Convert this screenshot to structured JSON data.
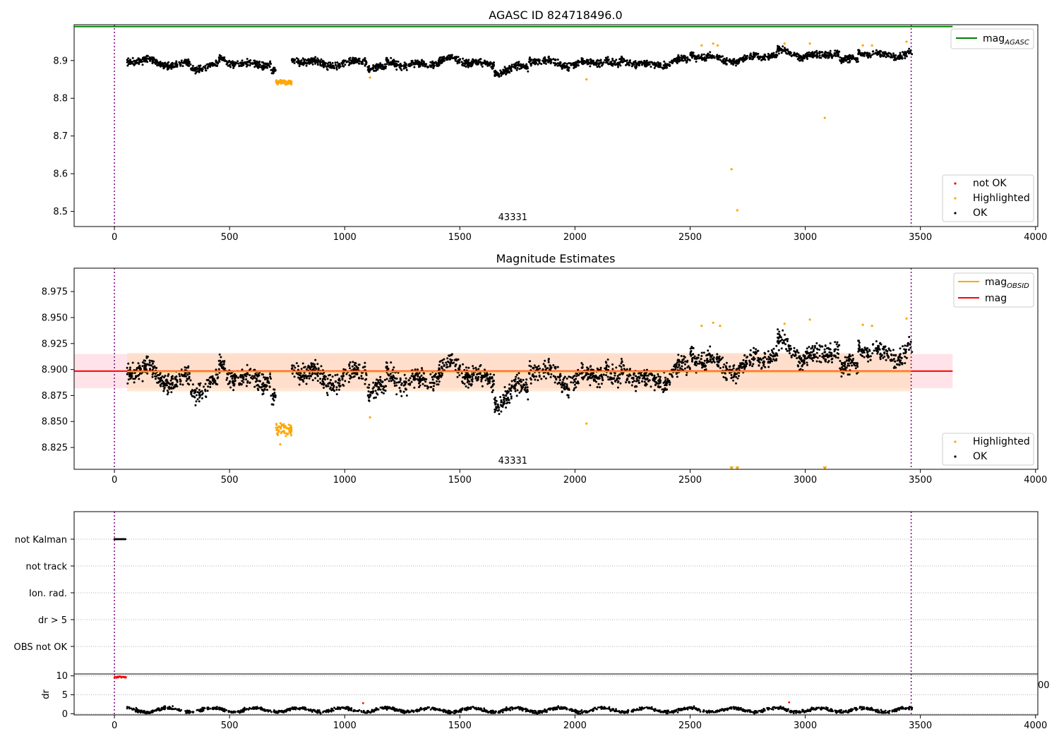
{
  "colors": {
    "ok": "#000000",
    "highlighted": "#ffa500",
    "not_ok": "#ff0000",
    "agasc_line": "#008000",
    "mag_line": "#ff0000",
    "obsid_line": "#ffa500",
    "obs_boundary": "#800080",
    "band_mag": "#ffc0cb",
    "band_obsid": "#ffdab9"
  },
  "chart_data": [
    {
      "id": "top",
      "type": "scatter",
      "title": "AGASC ID 824718496.0",
      "xlim": [
        -175,
        4010
      ],
      "ylim": [
        8.46,
        8.995
      ],
      "xticks": [
        "0",
        "500",
        "1000",
        "1500",
        "2000",
        "2500",
        "3000",
        "3500",
        "4000"
      ],
      "yticks": [
        "8.5",
        "8.6",
        "8.7",
        "8.8",
        "8.9"
      ],
      "obsid_label": "43331",
      "obsid_label_x": 1730,
      "obs_boundaries": [
        0,
        3460
      ],
      "agasc_mag": 8.99,
      "line_legend": [
        "mag_AGASC"
      ],
      "point_legend": [
        "not OK",
        "Highlighted",
        "OK"
      ],
      "highlighted_points": [
        [
          2550,
          8.94
        ],
        [
          2600,
          8.945
        ],
        [
          2620,
          8.94
        ],
        [
          2910,
          8.945
        ],
        [
          3020,
          8.945
        ],
        [
          3250,
          8.94
        ],
        [
          3290,
          8.94
        ],
        [
          3440,
          8.95
        ],
        [
          2050,
          8.85
        ],
        [
          1110,
          8.855
        ],
        [
          2680,
          8.612
        ],
        [
          2705,
          8.503
        ],
        [
          3085,
          8.748
        ]
      ]
    },
    {
      "id": "middle",
      "type": "scatter",
      "title": "Magnitude Estimates",
      "xlim": [
        -175,
        4010
      ],
      "ylim": [
        8.804,
        8.9975
      ],
      "xticks": [
        "0",
        "500",
        "1000",
        "1500",
        "2000",
        "2500",
        "3000",
        "3500",
        "4000"
      ],
      "yticks": [
        "8.825",
        "8.850",
        "8.875",
        "8.900",
        "8.925",
        "8.950",
        "8.975"
      ],
      "obsid_label": "43331",
      "obsid_label_x": 1730,
      "obs_boundaries": [
        0,
        3460
      ],
      "mag": 8.8985,
      "mag_band": [
        8.882,
        8.915
      ],
      "mag_obsid": 8.898,
      "obsid_band": [
        8.879,
        8.916
      ],
      "line_legend": [
        "mag_OBSID",
        "mag"
      ],
      "point_legend": [
        "Highlighted",
        "OK"
      ],
      "highlighted_points": [
        [
          2550,
          8.942
        ],
        [
          2600,
          8.945
        ],
        [
          2630,
          8.942
        ],
        [
          2910,
          8.944
        ],
        [
          3020,
          8.948
        ],
        [
          3250,
          8.943
        ],
        [
          3290,
          8.942
        ],
        [
          3440,
          8.949
        ],
        [
          2050,
          8.848
        ],
        [
          1110,
          8.854
        ],
        [
          720,
          8.828
        ]
      ],
      "offscale_markers": [
        2680,
        2705,
        3085
      ]
    },
    {
      "id": "flags",
      "type": "scatter",
      "categories": [
        "not Kalman",
        "not track",
        "Ion. rad.",
        "dr > 5",
        "OBS not OK"
      ],
      "xlim": [
        -175,
        4010
      ],
      "obs_boundaries": [
        0,
        3460
      ],
      "not_kalman_range": [
        0,
        50
      ]
    },
    {
      "id": "dr",
      "type": "scatter",
      "ylabel": "dr",
      "xlim": [
        -175,
        4010
      ],
      "ylim": [
        -0.3,
        10.5
      ],
      "xticks": [
        "0",
        "500",
        "1000",
        "1500",
        "2000",
        "2500",
        "3000",
        "3500",
        "4000"
      ],
      "yticks": [
        "0",
        "5",
        "10"
      ],
      "clipped_tick": "00",
      "obs_boundaries": [
        0,
        3460
      ],
      "not_ok_range": [
        0,
        50
      ],
      "red_points": [
        [
          1080,
          2.8
        ],
        [
          2930,
          3.0
        ]
      ]
    }
  ],
  "legend_labels": {
    "mag_base": "mag",
    "agasc_sub": "AGASC",
    "obsid_sub": "OBSID",
    "mag": "mag",
    "not_ok": "not OK",
    "highlighted": "Highlighted",
    "ok": "OK"
  }
}
